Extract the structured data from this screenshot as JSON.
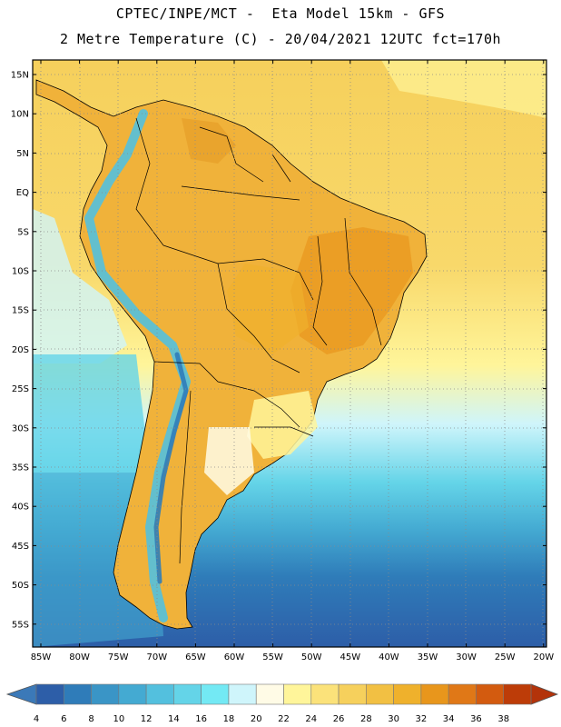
{
  "header": {
    "line1": "CPTEC/INPE/MCT -  Eta Model 15km - GFS",
    "line2": "2 Metre Temperature (C) - 20/04/2021 12UTC fct=170h"
  },
  "axes": {
    "lat_labels": [
      "15N",
      "10N",
      "5N",
      "EQ",
      "5S",
      "10S",
      "15S",
      "20S",
      "25S",
      "30S",
      "35S",
      "40S",
      "45S",
      "50S",
      "55S"
    ],
    "lon_labels": [
      "85W",
      "80W",
      "75W",
      "70W",
      "65W",
      "60W",
      "55W",
      "50W",
      "45W",
      "40W",
      "35W",
      "30W",
      "25W",
      "20W"
    ]
  },
  "legend": {
    "values": [
      "4",
      "6",
      "8",
      "10",
      "12",
      "14",
      "16",
      "18",
      "20",
      "22",
      "24",
      "26",
      "28",
      "30",
      "32",
      "34",
      "36",
      "38"
    ],
    "colors": [
      "#2d5ea8",
      "#2f7cb9",
      "#3a95c6",
      "#44aad2",
      "#53c0de",
      "#64d4e8",
      "#73e9f4",
      "#cff5fb",
      "#fffbe6",
      "#fff59a",
      "#fbe27a",
      "#f6d05c",
      "#f2c043",
      "#efb12c",
      "#e8961c",
      "#e07817",
      "#d35b0f",
      "#bd3c08"
    ],
    "low_arrow_color": "#3b79b8",
    "high_arrow_color": "#b3330a"
  },
  "map_colors": {
    "land_warm": "#f0b23a",
    "land_hot": "#e8a22c",
    "ocean_tropical": "#f6d05c",
    "ocean_warm": "#fbe27a",
    "ocean_mid": "#fff59a",
    "ocean_cool": "#73e9f4",
    "ocean_cold": "#44aad2",
    "ocean_polar": "#2d5ea8"
  }
}
